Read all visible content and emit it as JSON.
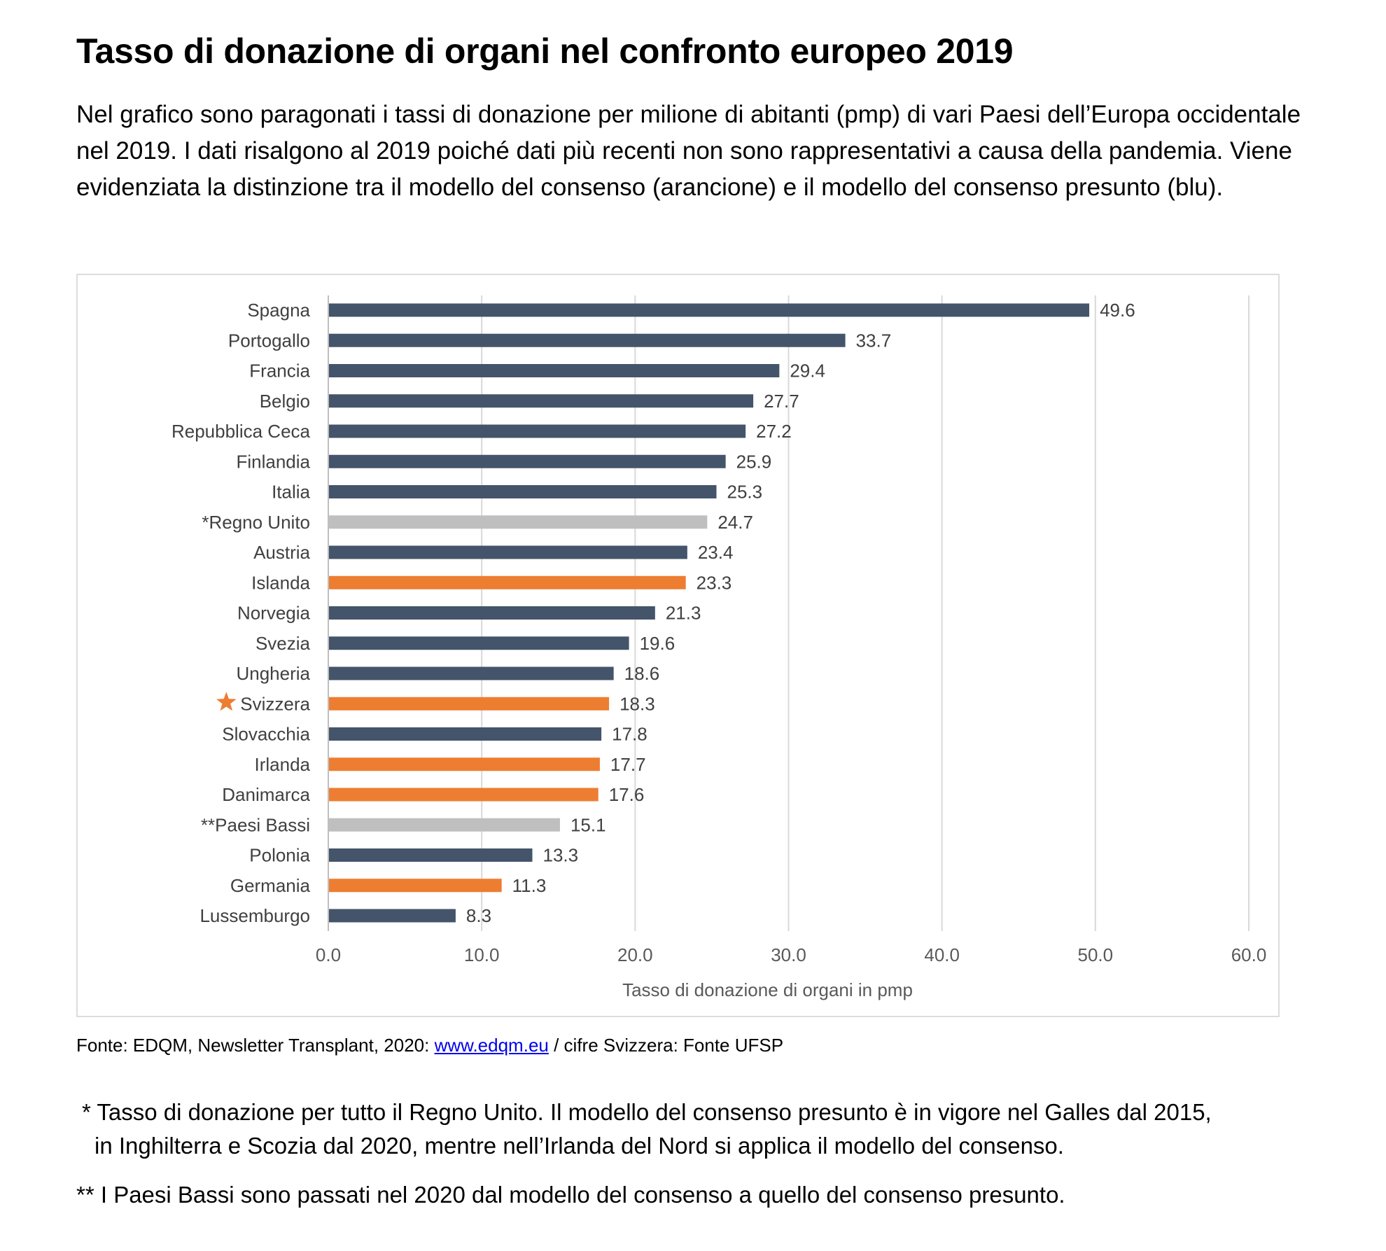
{
  "header": {
    "title": "Tasso di donazione di organi nel confronto europeo 2019",
    "intro": "Nel grafico sono paragonati i tassi di donazione per milione di abitanti (pmp) di vari Paesi dell’Europa occidentale nel 2019. I dati risalgono al 2019 poiché dati più recenti non sono rappresentativi a causa della pandemia. Viene evidenziata la distinzione tra il modello del consenso (arancione) e il modello del consenso presunto (blu)."
  },
  "colors": {
    "presumed_consent": "#44546a",
    "consent": "#ed7d31",
    "special": "#bfbfbf",
    "gridline": "#d9d9d9",
    "star": "#ed7d31"
  },
  "chart_data": {
    "type": "bar",
    "orientation": "horizontal",
    "title": "",
    "xlabel": "Tasso di donazione di organi in pmp",
    "ylabel": "",
    "xlim": [
      0,
      60
    ],
    "xticks": [
      "0.0",
      "10.0",
      "20.0",
      "30.0",
      "40.0",
      "50.0",
      "60.0"
    ],
    "grid": true,
    "legend": "none",
    "categories": [
      "Spagna",
      "Portogallo",
      "Francia",
      "Belgio",
      "Repubblica Ceca",
      "Finlandia",
      "Italia",
      "*Regno Unito",
      "Austria",
      "Islanda",
      "Norvegia",
      "Svezia",
      "Ungheria",
      "Svizzera",
      "Slovacchia",
      "Irlanda",
      "Danimarca",
      "**Paesi Bassi",
      "Polonia",
      "Germania",
      "Lussemburgo"
    ],
    "values": [
      49.6,
      33.7,
      29.4,
      27.7,
      27.2,
      25.9,
      25.3,
      24.7,
      23.4,
      23.3,
      21.3,
      19.6,
      18.6,
      18.3,
      17.8,
      17.7,
      17.6,
      15.1,
      13.3,
      11.3,
      8.3
    ],
    "value_labels": [
      "49.6",
      "33.7",
      "29.4",
      "27.7",
      "27.2",
      "25.9",
      "25.3",
      "24.7",
      "23.4",
      "23.3",
      "21.3",
      "19.6",
      "18.6",
      "18.3",
      "17.8",
      "17.7",
      "17.6",
      "15.1",
      "13.3",
      "11.3",
      "8.3"
    ],
    "groups": [
      "presumed_consent",
      "presumed_consent",
      "presumed_consent",
      "presumed_consent",
      "presumed_consent",
      "presumed_consent",
      "presumed_consent",
      "special",
      "presumed_consent",
      "consent",
      "presumed_consent",
      "presumed_consent",
      "presumed_consent",
      "consent",
      "presumed_consent",
      "consent",
      "consent",
      "special",
      "presumed_consent",
      "consent",
      "presumed_consent"
    ],
    "highlighted": "Svizzera",
    "highlight_icon": "star-icon"
  },
  "footer": {
    "source_prefix": "Fonte: EDQM, Newsletter Transplant, 2020: ",
    "source_link": "www.edqm.eu",
    "source_suffix": " / cifre Svizzera: Fonte UFSP",
    "note1_line1": "* Tasso di donazione per tutto il Regno Unito. Il modello del consenso presunto è in vigore nel Galles dal 2015,",
    "note1_line2": "in Inghilterra e Scozia dal 2020, mentre nell’Irlanda del Nord si applica il modello del consenso.",
    "note2": "** I Paesi Bassi sono passati nel 2020 dal modello del consenso a quello del consenso presunto."
  }
}
